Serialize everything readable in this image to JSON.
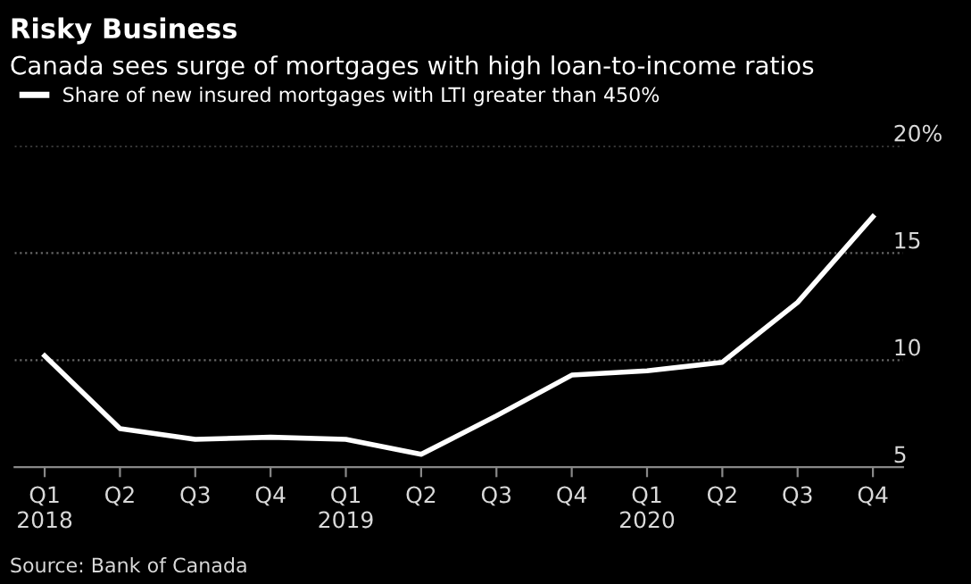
{
  "chart_data": {
    "type": "line",
    "title": "Risky Business",
    "subtitle": "Canada sees surge of mortgages with high loan-to-income ratios",
    "categories": [
      "Q1\n2018",
      "Q2",
      "Q3",
      "Q4",
      "Q1\n2019",
      "Q2",
      "Q3",
      "Q4",
      "Q1\n2020",
      "Q2",
      "Q3",
      "Q4"
    ],
    "series": [
      {
        "name": "Share of new insured mortgages with LTI greater than 450%",
        "color": "#ffffff",
        "values": [
          10.2,
          6.8,
          6.3,
          6.4,
          6.3,
          5.6,
          7.4,
          9.3,
          9.5,
          9.9,
          12.7,
          16.7
        ]
      }
    ],
    "ylim": [
      5,
      20
    ],
    "yticks": [
      5,
      10,
      15,
      {
        "value": 20,
        "label": "20%"
      }
    ],
    "grid": "y",
    "legend": "top left",
    "marker": "none",
    "line_style": "solid",
    "annotations": [
      "Source: Bank of Canada"
    ]
  }
}
